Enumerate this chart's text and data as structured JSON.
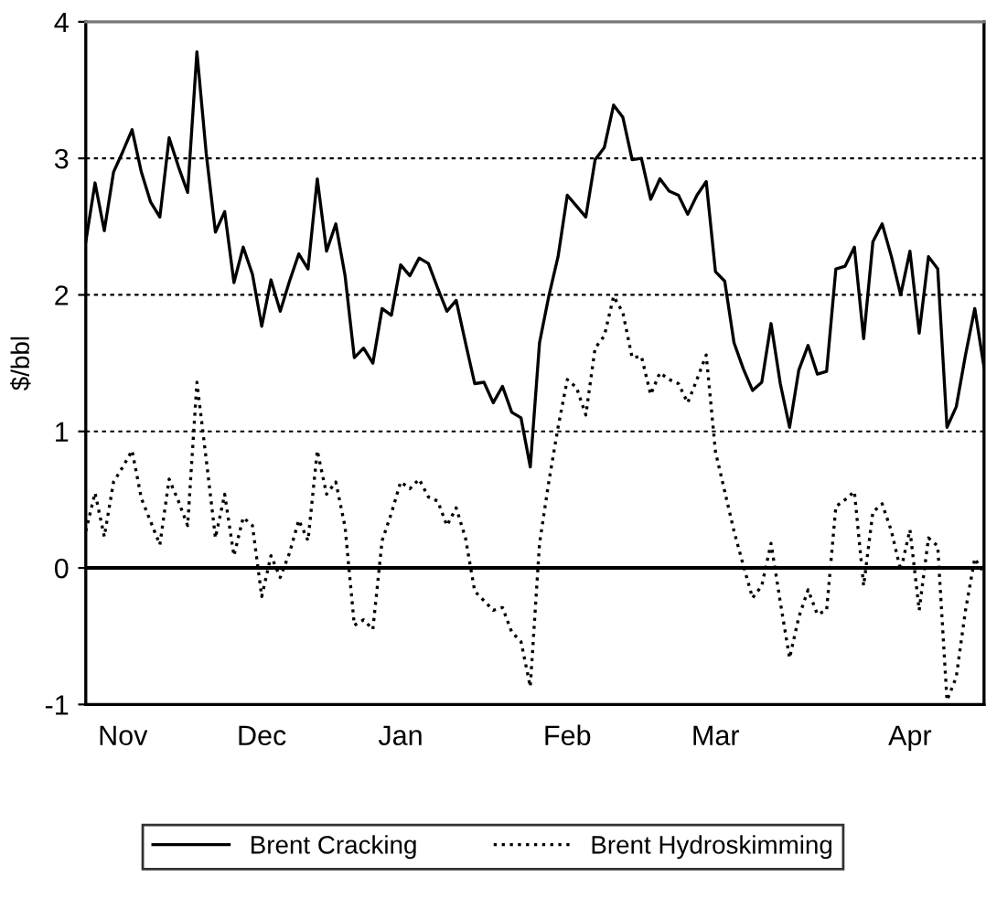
{
  "chart_data": {
    "type": "line",
    "ylabel": "$/bbl",
    "ylim": [
      -1,
      4
    ],
    "yticks": [
      -1,
      0,
      1,
      2,
      3,
      4
    ],
    "categories": [
      null,
      null,
      null,
      null,
      "Nov",
      null,
      null,
      null,
      null,
      null,
      null,
      null,
      null,
      null,
      null,
      null,
      null,
      null,
      null,
      "Dec",
      null,
      null,
      null,
      null,
      null,
      null,
      null,
      null,
      null,
      null,
      null,
      null,
      null,
      null,
      "Jan",
      null,
      null,
      null,
      null,
      null,
      null,
      null,
      null,
      null,
      null,
      null,
      null,
      null,
      null,
      null,
      null,
      null,
      "Feb",
      null,
      null,
      null,
      null,
      null,
      null,
      null,
      null,
      null,
      null,
      null,
      null,
      null,
      null,
      null,
      "Mar",
      null,
      null,
      null,
      null,
      null,
      null,
      null,
      null,
      null,
      null,
      null,
      null,
      null,
      null,
      null,
      null,
      null,
      null,
      null,
      null,
      "Apr",
      null,
      null,
      null,
      null,
      null,
      null,
      null,
      null
    ],
    "grid": "y",
    "legend": "bottom",
    "ref_lines": [
      {
        "axis": "y",
        "value": 0,
        "color": "#000000",
        "line_style": "solid"
      }
    ],
    "series": [
      {
        "name": "Brent Cracking",
        "color": "#000000",
        "line_style": "solid",
        "values": [
          2.39,
          2.82,
          2.47,
          2.9,
          3.05,
          3.21,
          2.9,
          2.68,
          2.57,
          3.15,
          2.94,
          2.75,
          3.78,
          3.04,
          2.46,
          2.61,
          2.09,
          2.35,
          2.15,
          1.77,
          2.11,
          1.88,
          2.1,
          2.3,
          2.19,
          2.85,
          2.32,
          2.52,
          2.14,
          1.54,
          1.61,
          1.5,
          1.9,
          1.85,
          2.22,
          2.14,
          2.27,
          2.23,
          2.05,
          1.88,
          1.96,
          1.65,
          1.35,
          1.36,
          1.21,
          1.33,
          1.14,
          1.1,
          0.74,
          1.65,
          1.99,
          2.28,
          2.73,
          2.65,
          2.57,
          2.99,
          3.08,
          3.39,
          3.3,
          2.99,
          3.0,
          2.7,
          2.85,
          2.76,
          2.73,
          2.59,
          2.73,
          2.83,
          2.17,
          2.1,
          1.65,
          1.46,
          1.3,
          1.36,
          1.79,
          1.35,
          1.03,
          1.45,
          1.63,
          1.42,
          1.44,
          2.19,
          2.21,
          2.35,
          1.68,
          2.39,
          2.52,
          2.28,
          2.0,
          2.32,
          1.72,
          2.28,
          2.19,
          1.03,
          1.18,
          1.56,
          1.9,
          1.47
        ]
      },
      {
        "name": "Brent Hydroskimming",
        "color": "#000000",
        "line_style": "dotted",
        "values": [
          0.27,
          0.55,
          0.23,
          0.63,
          0.74,
          0.86,
          0.51,
          0.34,
          0.17,
          0.65,
          0.49,
          0.31,
          1.36,
          0.8,
          0.22,
          0.54,
          0.09,
          0.37,
          0.31,
          -0.21,
          0.09,
          -0.07,
          0.11,
          0.35,
          0.2,
          0.86,
          0.54,
          0.63,
          0.3,
          -0.42,
          -0.38,
          -0.45,
          0.2,
          0.4,
          0.63,
          0.58,
          0.65,
          0.52,
          0.49,
          0.31,
          0.44,
          0.22,
          -0.17,
          -0.24,
          -0.31,
          -0.29,
          -0.47,
          -0.54,
          -0.87,
          0.18,
          0.63,
          1.03,
          1.38,
          1.32,
          1.12,
          1.61,
          1.7,
          1.99,
          1.87,
          1.54,
          1.55,
          1.27,
          1.43,
          1.38,
          1.35,
          1.21,
          1.38,
          1.56,
          0.85,
          0.56,
          0.27,
          0.02,
          -0.22,
          -0.13,
          0.18,
          -0.25,
          -0.66,
          -0.36,
          -0.16,
          -0.34,
          -0.31,
          0.45,
          0.5,
          0.56,
          -0.13,
          0.41,
          0.47,
          0.27,
          -0.02,
          0.28,
          -0.31,
          0.22,
          0.16,
          -0.97,
          -0.8,
          -0.31,
          0.07,
          -0.04
        ]
      }
    ]
  }
}
